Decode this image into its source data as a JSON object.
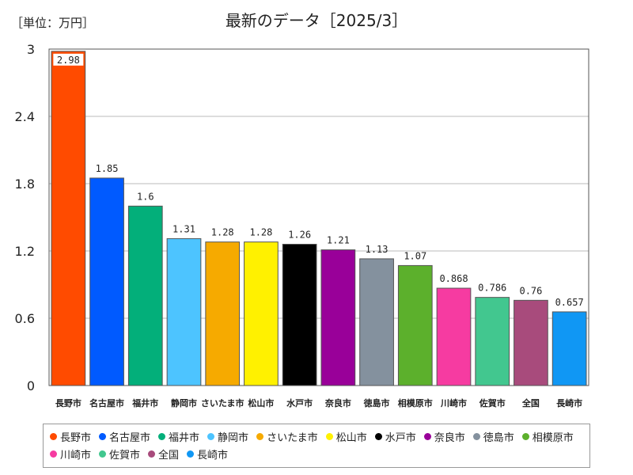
{
  "unit_label": "［単位：万円］",
  "title": "最新のデータ［2025/3］",
  "chart_data": {
    "type": "bar",
    "categories": [
      "長野市",
      "名古屋市",
      "福井市",
      "静岡市",
      "さいたま市",
      "松山市",
      "水戸市",
      "奈良市",
      "徳島市",
      "相模原市",
      "川崎市",
      "佐賀市",
      "全国",
      "長崎市"
    ],
    "values": [
      2.98,
      1.85,
      1.6,
      1.31,
      1.28,
      1.28,
      1.26,
      1.21,
      1.13,
      1.07,
      0.868,
      0.786,
      0.76,
      0.657
    ],
    "value_labels": [
      "2.98",
      "1.85",
      "1.6",
      "1.31",
      "1.28",
      "1.28",
      "1.26",
      "1.21",
      "1.13",
      "1.07",
      "0.868",
      "0.786",
      "0.76",
      "0.657"
    ],
    "colors": [
      "#ff4b00",
      "#005aff",
      "#03af7a",
      "#4dc4ff",
      "#f6aa00",
      "#fff100",
      "#000000",
      "#990099",
      "#84919e",
      "#5cb02c",
      "#f63ba1",
      "#42c78f",
      "#a84b7c",
      "#1097f4"
    ],
    "yticks": [
      "0",
      "0.6",
      "1.2",
      "1.8",
      "2.4",
      "3"
    ],
    "ylim": [
      0,
      3
    ],
    "grid": true,
    "legend_position": "bottom"
  }
}
